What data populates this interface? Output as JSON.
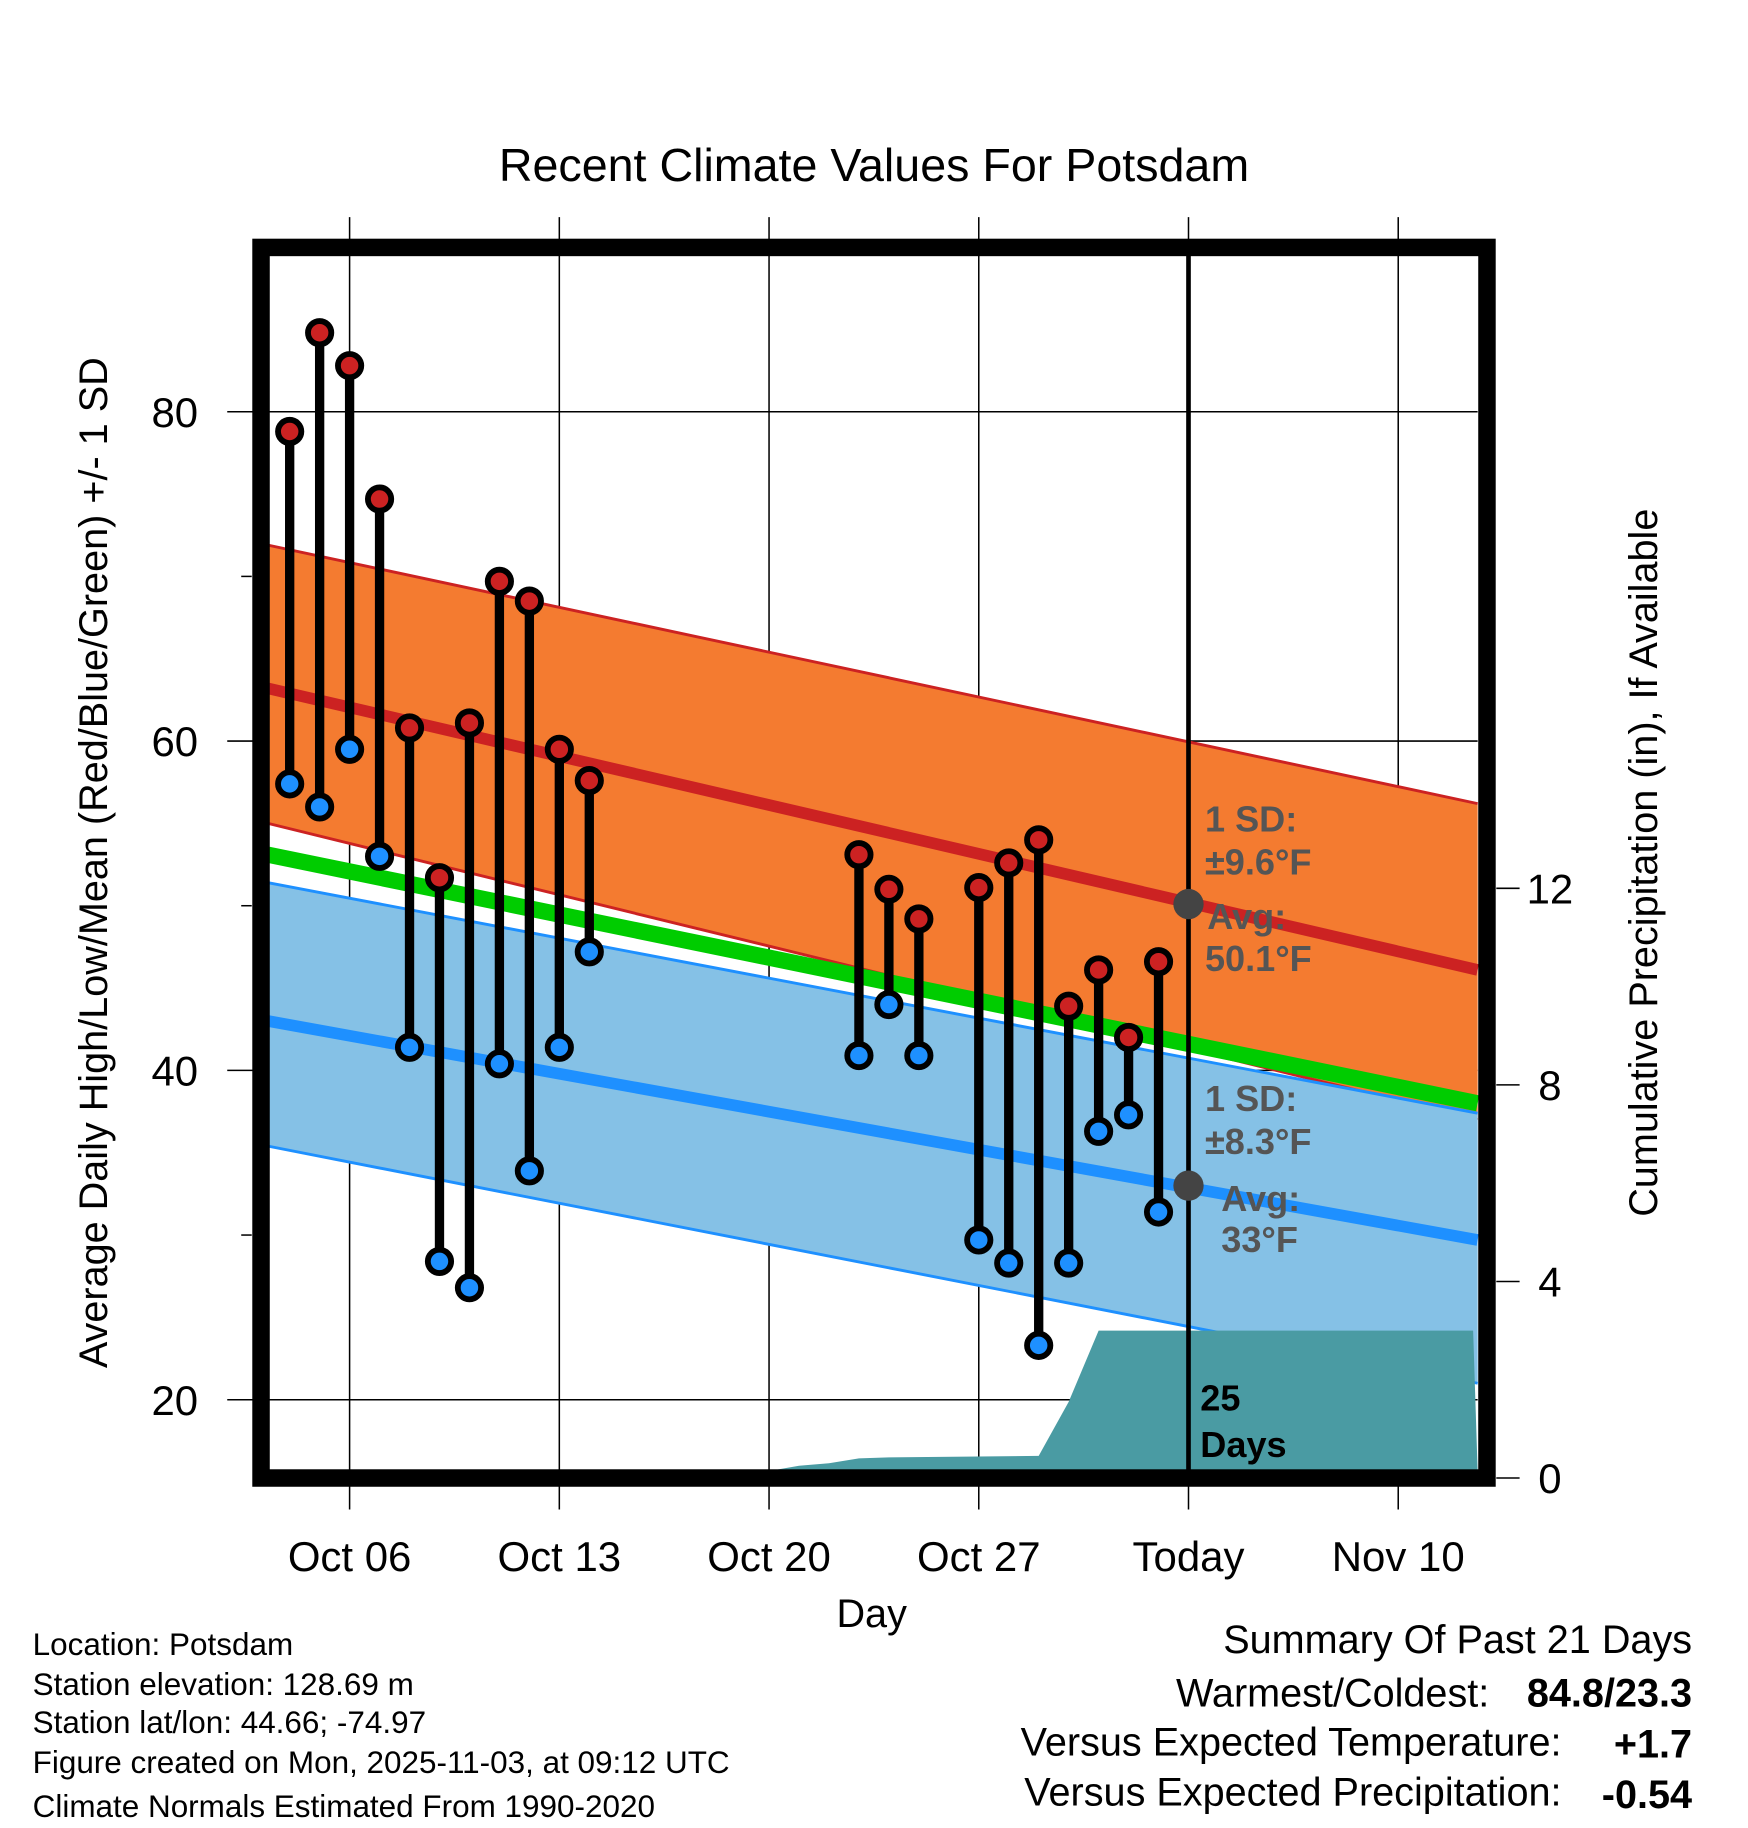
{
  "chart_data": {
    "type": "line",
    "title": "Recent Climate Values For Potsdam",
    "xlabel": "Day",
    "ylabel": "Average Daily High/Low/Mean (Red/Blue/Green) +/- 1 SD",
    "y2label": "Cumulative Precipitation (in), If Available",
    "x_day_zero": "Oct 06",
    "xlim_days": [
      -2.7,
      37.5
    ],
    "ylim": [
      15.7,
      90
    ],
    "y2lim": [
      0,
      22.5
    ],
    "yticks": [
      20,
      40,
      60,
      80
    ],
    "yminor": [
      30,
      50,
      70
    ],
    "y2ticks": [
      0,
      4,
      8,
      12
    ],
    "xticks": [
      {
        "day": 0,
        "label": "Oct 06"
      },
      {
        "day": 7,
        "label": "Oct 13"
      },
      {
        "day": 14,
        "label": "Oct 20"
      },
      {
        "day": 21,
        "label": "Oct 27"
      },
      {
        "day": 28,
        "label": "Today"
      },
      {
        "day": 35,
        "label": "Nov 10"
      }
    ],
    "today_day": 28,
    "grid": true,
    "observations": {
      "days": [
        -2,
        -1,
        0,
        1,
        2,
        3,
        4,
        5,
        6,
        7,
        8,
        17,
        18,
        19,
        21,
        22,
        23,
        24,
        25,
        26,
        27
      ],
      "highs": [
        78.8,
        84.8,
        82.8,
        74.7,
        60.8,
        51.7,
        61.1,
        69.7,
        68.5,
        59.5,
        57.6,
        53.1,
        51.0,
        49.2,
        51.1,
        52.6,
        54.0,
        43.9,
        46.1,
        42.0,
        46.6
      ],
      "lows": [
        57.4,
        56.0,
        59.5,
        53.0,
        41.4,
        28.4,
        26.8,
        40.4,
        33.9,
        41.4,
        47.2,
        40.9,
        44.0,
        40.9,
        29.7,
        28.3,
        23.3,
        28.3,
        36.3,
        37.3,
        31.4
      ]
    },
    "normals": {
      "high_mean": [
        63.2,
        46.1
      ],
      "high_upper": [
        71.9,
        56.2
      ],
      "high_lower": [
        55.0,
        37.0
      ],
      "low_mean": [
        43.0,
        29.7
      ],
      "low_upper": [
        51.4,
        37.4
      ],
      "low_lower": [
        35.4,
        21.0
      ],
      "mean": [
        53.1,
        38.0
      ]
    },
    "precip": {
      "days": [
        -2.7,
        8,
        14,
        15,
        16,
        17,
        18,
        23,
        24,
        25,
        37.5
      ],
      "values": [
        0,
        0.0,
        0.05,
        0.25,
        0.3,
        0.4,
        0.42,
        0.45,
        1.55,
        3.0,
        3.0
      ]
    },
    "annotations": {
      "high_sd_label": "1 SD:",
      "high_sd_value": "±9.6°F",
      "high_avg_label": "Avg:",
      "high_avg_value": "50.1°F",
      "high_avg": 50.1,
      "low_sd_label": "1 SD:",
      "low_sd_value": "±8.3°F",
      "low_avg_label": "Avg:",
      "low_avg_value": "33°F",
      "low_avg": 33,
      "days_num": "25",
      "days_word": "Days"
    },
    "colors": {
      "high_band": "#F47B30",
      "high_line": "#CC2222",
      "mean_line": "#00CC00",
      "low_band": "#85C1E6",
      "low_line": "#1E90FF",
      "precip": "#4A9BA3",
      "annotation": "#555555"
    }
  },
  "footer": {
    "location": "Location: Potsdam",
    "elevation": "Station elevation: 128.69 m",
    "latlon": "Station lat/lon: 44.66; -74.97",
    "created": "Figure created on Mon, 2025-11-03, at 09:12 UTC",
    "normals": "Climate Normals Estimated From 1990-2020"
  },
  "summary": {
    "title": "Summary Of Past 21 Days",
    "warmest_label": "Warmest/Coldest:",
    "warmest_value": "84.8/23.3",
    "temp_label": "Versus Expected Temperature:",
    "temp_value": "+1.7",
    "temp_color": "#CC2222",
    "precip_label": "Versus Expected Precipitation:",
    "precip_value": "-0.54",
    "precip_color": "#A0522D"
  }
}
